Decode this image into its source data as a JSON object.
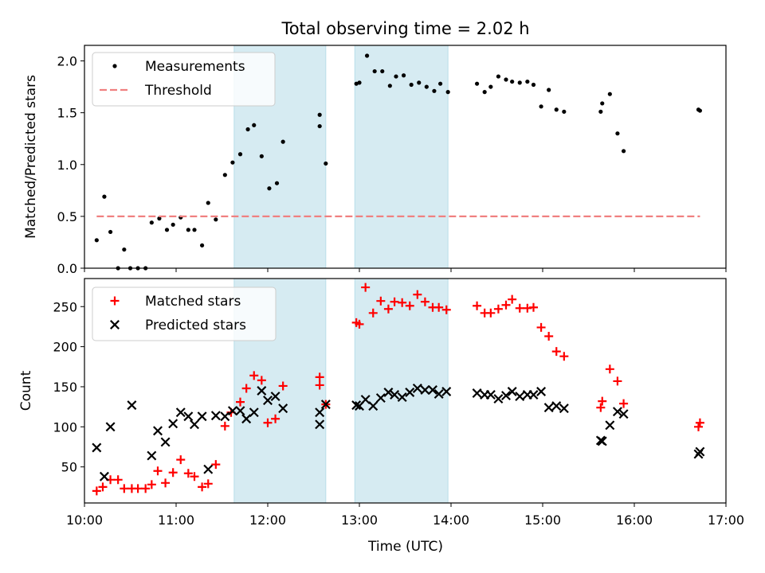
{
  "figure": {
    "title": "Total observing time = 2.02 h",
    "xlabel": "Time (UTC)"
  },
  "chart_data": [
    {
      "type": "scatter",
      "ylabel": "Matched/Predicted stars",
      "ylim": [
        0,
        2.15
      ],
      "xlim": [
        "10:00",
        "17:00"
      ],
      "yticks": [
        "0.0",
        "0.5",
        "1.0",
        "1.5",
        "2.0"
      ],
      "ytick_values": [
        0,
        0.5,
        1.0,
        1.5,
        2.0
      ],
      "legend_position": "upper-left",
      "shaded_spans": [
        [
          "11:38",
          "12:38"
        ],
        [
          "12:57",
          "13:58"
        ]
      ],
      "series": [
        {
          "name": "Measurements",
          "marker": "dot",
          "color": "#000000",
          "points": [
            [
              "10:08",
              0.27
            ],
            [
              "10:13",
              0.69
            ],
            [
              "10:17",
              0.35
            ],
            [
              "10:22",
              0.0
            ],
            [
              "10:26",
              0.18
            ],
            [
              "10:30",
              0.0
            ],
            [
              "10:35",
              0.0
            ],
            [
              "10:40",
              0.0
            ],
            [
              "10:44",
              0.44
            ],
            [
              "10:49",
              0.48
            ],
            [
              "10:54",
              0.37
            ],
            [
              "10:58",
              0.42
            ],
            [
              "11:03",
              0.49
            ],
            [
              "11:08",
              0.37
            ],
            [
              "11:12",
              0.37
            ],
            [
              "11:17",
              0.22
            ],
            [
              "11:21",
              0.63
            ],
            [
              "11:26",
              0.47
            ],
            [
              "11:32",
              0.9
            ],
            [
              "11:37",
              1.02
            ],
            [
              "11:42",
              1.1
            ],
            [
              "11:47",
              1.34
            ],
            [
              "11:51",
              1.38
            ],
            [
              "11:56",
              1.08
            ],
            [
              "12:01",
              0.77
            ],
            [
              "12:06",
              0.82
            ],
            [
              "12:10",
              1.22
            ],
            [
              "12:34",
              1.48
            ],
            [
              "12:34",
              1.37
            ],
            [
              "12:38",
              1.01
            ],
            [
              "12:58",
              1.78
            ],
            [
              "13:00",
              1.79
            ],
            [
              "13:05",
              2.05
            ],
            [
              "13:10",
              1.9
            ],
            [
              "13:15",
              1.9
            ],
            [
              "13:20",
              1.76
            ],
            [
              "13:24",
              1.85
            ],
            [
              "13:29",
              1.86
            ],
            [
              "13:34",
              1.77
            ],
            [
              "13:39",
              1.79
            ],
            [
              "13:44",
              1.75
            ],
            [
              "13:49",
              1.71
            ],
            [
              "13:53",
              1.78
            ],
            [
              "13:58",
              1.7
            ],
            [
              "14:17",
              1.78
            ],
            [
              "14:22",
              1.7
            ],
            [
              "14:26",
              1.75
            ],
            [
              "14:31",
              1.85
            ],
            [
              "14:36",
              1.82
            ],
            [
              "14:40",
              1.8
            ],
            [
              "14:45",
              1.79
            ],
            [
              "14:50",
              1.8
            ],
            [
              "14:54",
              1.77
            ],
            [
              "14:59",
              1.56
            ],
            [
              "15:04",
              1.72
            ],
            [
              "15:09",
              1.53
            ],
            [
              "15:14",
              1.51
            ],
            [
              "15:38",
              1.51
            ],
            [
              "15:39",
              1.59
            ],
            [
              "15:44",
              1.68
            ],
            [
              "15:49",
              1.3
            ],
            [
              "15:53",
              1.13
            ],
            [
              "16:42",
              1.53
            ],
            [
              "16:43",
              1.52
            ]
          ]
        },
        {
          "name": "Threshold",
          "marker": "dashed-line",
          "color": "#f08080",
          "points": [
            [
              "10:08",
              0.5
            ],
            [
              "16:43",
              0.5
            ]
          ]
        }
      ]
    },
    {
      "type": "scatter",
      "ylabel": "Count",
      "ylim": [
        5,
        285
      ],
      "xlim": [
        "10:00",
        "17:00"
      ],
      "yticks": [
        "50",
        "100",
        "150",
        "200",
        "250"
      ],
      "ytick_values": [
        50,
        100,
        150,
        200,
        250
      ],
      "xticks": [
        "10:00",
        "11:00",
        "12:00",
        "13:00",
        "14:00",
        "15:00",
        "16:00",
        "17:00"
      ],
      "legend_position": "upper-left",
      "shaded_spans": [
        [
          "11:38",
          "12:38"
        ],
        [
          "12:57",
          "13:58"
        ]
      ],
      "series": [
        {
          "name": "Matched stars",
          "marker": "plus",
          "color": "#ff0000",
          "points": [
            [
              "10:08",
              20
            ],
            [
              "10:12",
              25
            ],
            [
              "10:17",
              34
            ],
            [
              "10:22",
              34
            ],
            [
              "10:26",
              23
            ],
            [
              "10:31",
              23
            ],
            [
              "10:35",
              23
            ],
            [
              "10:40",
              23
            ],
            [
              "10:44",
              28
            ],
            [
              "10:48",
              45
            ],
            [
              "10:53",
              30
            ],
            [
              "10:58",
              43
            ],
            [
              "11:03",
              59
            ],
            [
              "11:08",
              42
            ],
            [
              "11:12",
              38
            ],
            [
              "11:17",
              25
            ],
            [
              "11:21",
              29
            ],
            [
              "11:26",
              53
            ],
            [
              "11:32",
              101
            ],
            [
              "11:36",
              118
            ],
            [
              "11:42",
              131
            ],
            [
              "11:46",
              148
            ],
            [
              "11:51",
              164
            ],
            [
              "11:56",
              158
            ],
            [
              "12:00",
              105
            ],
            [
              "12:05",
              110
            ],
            [
              "12:10",
              151
            ],
            [
              "12:34",
              162
            ],
            [
              "12:34",
              152
            ],
            [
              "12:38",
              128
            ],
            [
              "12:58",
              230
            ],
            [
              "13:00",
              228
            ],
            [
              "13:04",
              274
            ],
            [
              "13:09",
              242
            ],
            [
              "13:14",
              257
            ],
            [
              "13:19",
              247
            ],
            [
              "13:23",
              256
            ],
            [
              "13:28",
              255
            ],
            [
              "13:33",
              251
            ],
            [
              "13:38",
              265
            ],
            [
              "13:43",
              256
            ],
            [
              "13:48",
              249
            ],
            [
              "13:52",
              249
            ],
            [
              "13:57",
              246
            ],
            [
              "14:17",
              251
            ],
            [
              "14:22",
              242
            ],
            [
              "14:26",
              242
            ],
            [
              "14:31",
              247
            ],
            [
              "14:36",
              252
            ],
            [
              "14:40",
              259
            ],
            [
              "14:45",
              248
            ],
            [
              "14:50",
              248
            ],
            [
              "14:54",
              249
            ],
            [
              "14:59",
              224
            ],
            [
              "15:04",
              213
            ],
            [
              "15:09",
              194
            ],
            [
              "15:14",
              188
            ],
            [
              "15:38",
              124
            ],
            [
              "15:39",
              132
            ],
            [
              "15:44",
              172
            ],
            [
              "15:49",
              157
            ],
            [
              "15:53",
              129
            ],
            [
              "16:42",
              100
            ],
            [
              "16:43",
              105
            ]
          ]
        },
        {
          "name": "Predicted stars",
          "marker": "cross",
          "color": "#000000",
          "points": [
            [
              "10:08",
              74
            ],
            [
              "10:13",
              38
            ],
            [
              "10:17",
              100
            ],
            [
              "10:31",
              127
            ],
            [
              "10:44",
              64
            ],
            [
              "10:48",
              95
            ],
            [
              "10:53",
              81
            ],
            [
              "10:58",
              104
            ],
            [
              "11:03",
              118
            ],
            [
              "11:08",
              113
            ],
            [
              "11:12",
              103
            ],
            [
              "11:17",
              113
            ],
            [
              "11:21",
              47
            ],
            [
              "11:26",
              114
            ],
            [
              "11:32",
              113
            ],
            [
              "11:37",
              120
            ],
            [
              "11:42",
              120
            ],
            [
              "11:46",
              110
            ],
            [
              "11:51",
              118
            ],
            [
              "11:56",
              145
            ],
            [
              "12:00",
              133
            ],
            [
              "12:05",
              138
            ],
            [
              "12:10",
              123
            ],
            [
              "12:34",
              118
            ],
            [
              "12:34",
              103
            ],
            [
              "12:38",
              128
            ],
            [
              "12:58",
              127
            ],
            [
              "13:00",
              126
            ],
            [
              "13:04",
              134
            ],
            [
              "13:09",
              126
            ],
            [
              "13:14",
              136
            ],
            [
              "13:19",
              143
            ],
            [
              "13:23",
              140
            ],
            [
              "13:28",
              137
            ],
            [
              "13:33",
              143
            ],
            [
              "13:38",
              148
            ],
            [
              "13:43",
              146
            ],
            [
              "13:48",
              146
            ],
            [
              "13:52",
              141
            ],
            [
              "13:57",
              144
            ],
            [
              "14:17",
              142
            ],
            [
              "14:22",
              140
            ],
            [
              "14:26",
              140
            ],
            [
              "14:31",
              135
            ],
            [
              "14:36",
              139
            ],
            [
              "14:40",
              144
            ],
            [
              "14:45",
              138
            ],
            [
              "14:50",
              140
            ],
            [
              "14:54",
              140
            ],
            [
              "14:59",
              144
            ],
            [
              "15:04",
              124
            ],
            [
              "15:09",
              126
            ],
            [
              "15:14",
              123
            ],
            [
              "15:38",
              83
            ],
            [
              "15:39",
              82
            ],
            [
              "15:44",
              102
            ],
            [
              "15:49",
              119
            ],
            [
              "15:53",
              116
            ],
            [
              "16:42",
              66
            ],
            [
              "16:43",
              69
            ]
          ]
        }
      ]
    }
  ]
}
